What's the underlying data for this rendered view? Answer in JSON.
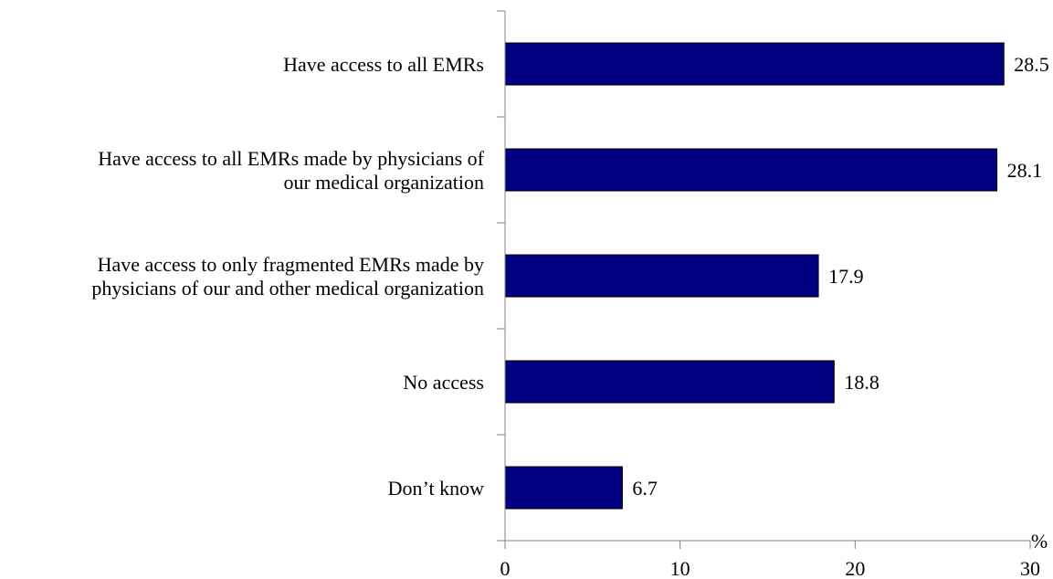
{
  "chart_data": {
    "type": "bar",
    "orientation": "horizontal",
    "categories": [
      [
        "Have access to all EMRs"
      ],
      [
        "Have access to all EMRs made by physicians of",
        "our medical organization"
      ],
      [
        "Have access to only fragmented EMRs made by",
        "physicians of our and other medical organization"
      ],
      [
        "No access"
      ],
      [
        "Don’t know"
      ]
    ],
    "values": [
      28.5,
      28.1,
      17.9,
      18.8,
      6.7
    ],
    "value_labels": [
      "28.5",
      "28.1",
      "17.9",
      "18.8",
      "6.7"
    ],
    "x_ticks": [
      0,
      10,
      20,
      30
    ],
    "xlim": [
      0,
      30
    ],
    "unit_label": "%",
    "title": "",
    "xlabel": "",
    "ylabel": "",
    "grid": false,
    "legend": "none",
    "colors": {
      "bar_fill": "#000080",
      "bar_stroke": "#000000",
      "axis": "#808080",
      "text": "#000000"
    }
  }
}
